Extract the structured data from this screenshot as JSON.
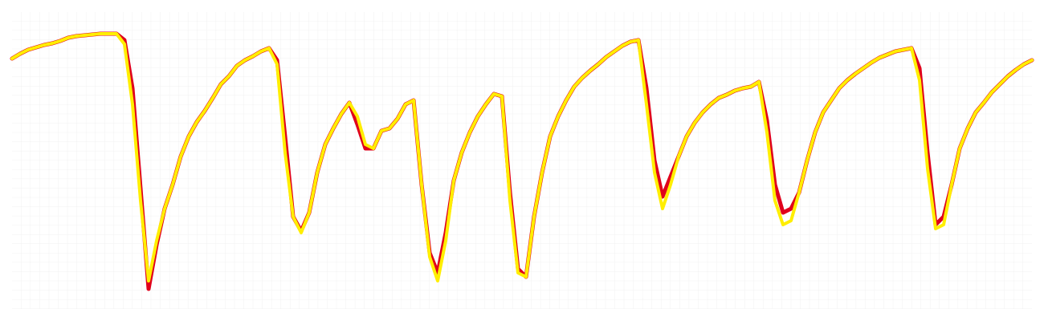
{
  "chart_data": {
    "type": "line",
    "ylim": [
      0,
      370
    ],
    "grid": true,
    "series": [
      {
        "color": "#e0001b",
        "values": [
          312,
          318,
          323,
          326,
          329,
          331,
          334,
          338,
          340,
          341,
          342,
          343,
          343,
          343,
          335,
          275,
          150,
          25,
          80,
          125,
          155,
          190,
          215,
          233,
          247,
          263,
          280,
          290,
          303,
          310,
          315,
          321,
          325,
          310,
          215,
          115,
          97,
          120,
          170,
          205,
          225,
          243,
          257,
          230,
          200,
          200,
          222,
          225,
          237,
          255,
          260,
          155,
          70,
          45,
          95,
          160,
          195,
          220,
          240,
          255,
          268,
          265,
          145,
          50,
          40,
          115,
          170,
          215,
          240,
          260,
          277,
          288,
          297,
          305,
          314,
          321,
          328,
          333,
          335,
          275,
          185,
          140,
          165,
          190,
          215,
          232,
          245,
          255,
          263,
          267,
          272,
          275,
          277,
          283,
          235,
          155,
          120,
          125,
          145,
          185,
          220,
          245,
          260,
          275,
          285,
          293,
          300,
          307,
          313,
          317,
          321,
          323,
          325,
          300,
          195,
          105,
          115,
          155,
          200,
          225,
          245,
          257,
          270,
          280,
          290,
          298,
          305,
          310
        ]
      },
      {
        "color": "#ffee00",
        "values": [
          312,
          318,
          323,
          326,
          329,
          331,
          334,
          338,
          340,
          341,
          342,
          343,
          343,
          343,
          330,
          255,
          135,
          35,
          85,
          125,
          155,
          190,
          215,
          233,
          247,
          263,
          280,
          290,
          303,
          310,
          315,
          321,
          325,
          305,
          195,
          115,
          95,
          120,
          170,
          205,
          225,
          243,
          257,
          240,
          205,
          200,
          222,
          225,
          237,
          255,
          260,
          155,
          65,
          35,
          85,
          160,
          195,
          220,
          240,
          255,
          268,
          265,
          135,
          45,
          40,
          115,
          170,
          215,
          240,
          260,
          277,
          288,
          297,
          305,
          314,
          321,
          328,
          333,
          335,
          255,
          170,
          125,
          155,
          190,
          215,
          232,
          245,
          255,
          263,
          267,
          272,
          275,
          277,
          283,
          220,
          135,
          105,
          110,
          145,
          185,
          220,
          245,
          260,
          275,
          285,
          293,
          300,
          307,
          313,
          317,
          321,
          323,
          325,
          285,
          175,
          100,
          105,
          155,
          200,
          225,
          245,
          257,
          270,
          280,
          290,
          298,
          305,
          310
        ]
      }
    ]
  }
}
